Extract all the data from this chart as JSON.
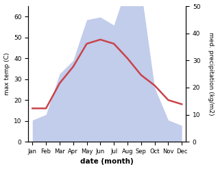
{
  "months": [
    "Jan",
    "Feb",
    "Mar",
    "Apr",
    "May",
    "Jun",
    "Jul",
    "Aug",
    "Sep",
    "Oct",
    "Nov",
    "Dec"
  ],
  "temperature": [
    16,
    16,
    28,
    36,
    47,
    49,
    47,
    40,
    32,
    27,
    20,
    18
  ],
  "precipitation": [
    8,
    10,
    25,
    30,
    45,
    46,
    43,
    58,
    56,
    20,
    8,
    6
  ],
  "temp_color": "#c8434a",
  "precip_fill_color": "#b8c4e8",
  "temp_ylim": [
    0,
    65
  ],
  "precip_ylim": [
    0,
    50
  ],
  "temp_yticks": [
    0,
    10,
    20,
    30,
    40,
    50,
    60
  ],
  "precip_yticks": [
    0,
    10,
    20,
    30,
    40,
    50
  ],
  "xlabel": "date (month)",
  "ylabel_left": "max temp (C)",
  "ylabel_right": "med. precipitation (kg/m2)",
  "figsize": [
    3.18,
    2.47
  ],
  "dpi": 100
}
